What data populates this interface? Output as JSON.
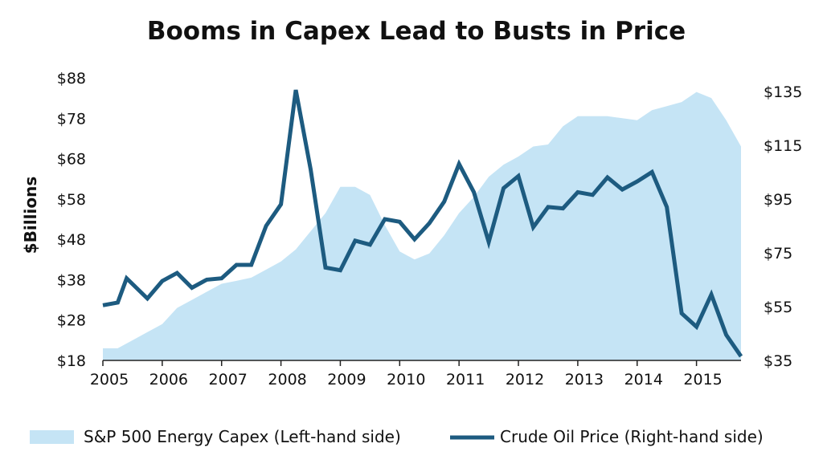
{
  "chart_data": {
    "type": "area+line",
    "title": "Booms in Capex Lead to Busts in Price",
    "ylabel": "$Billions",
    "x_range": [
      2005.0,
      2015.75
    ],
    "x_ticks": [
      2005,
      2006,
      2007,
      2008,
      2009,
      2010,
      2011,
      2012,
      2013,
      2014,
      2015
    ],
    "left_axis": {
      "range": [
        18,
        88
      ],
      "ticks": [
        18,
        28,
        38,
        48,
        58,
        68,
        78,
        88
      ],
      "tick_labels": [
        "$18",
        "$28",
        "$38",
        "$48",
        "$58",
        "$68",
        "$78",
        "$88"
      ]
    },
    "right_axis": {
      "range": [
        35,
        140
      ],
      "ticks": [
        35,
        55,
        75,
        95,
        115,
        135
      ],
      "tick_labels": [
        "$35",
        "$55",
        "$75",
        "$95",
        "$115",
        "$135"
      ]
    },
    "legend_placement": "bottom",
    "grid": false,
    "series": [
      {
        "name": "S&P 500 Energy Capex (Left-hand side)",
        "type": "area",
        "axis": "left",
        "color": "#c5e4f5",
        "x": [
          2005.0,
          2005.25,
          2005.5,
          2005.75,
          2006.0,
          2006.25,
          2006.5,
          2006.75,
          2007.0,
          2007.25,
          2007.5,
          2007.75,
          2008.0,
          2008.25,
          2008.5,
          2008.75,
          2009.0,
          2009.25,
          2009.5,
          2009.75,
          2010.0,
          2010.25,
          2010.5,
          2010.75,
          2011.0,
          2011.25,
          2011.5,
          2011.75,
          2012.0,
          2012.25,
          2012.5,
          2012.75,
          2013.0,
          2013.25,
          2013.5,
          2013.75,
          2014.0,
          2014.25,
          2014.5,
          2014.75,
          2015.0,
          2015.25,
          2015.5,
          2015.75
        ],
        "values": [
          21,
          21,
          23,
          25,
          27,
          31,
          33,
          35,
          37,
          37.7,
          38.5,
          40.5,
          42.5,
          45.5,
          50,
          54.5,
          61,
          61,
          59,
          51.5,
          45,
          43,
          44.5,
          49,
          54.5,
          58.5,
          63.5,
          66.5,
          68.5,
          71,
          71.5,
          76,
          78.5,
          78.5,
          78.5,
          78,
          77.5,
          80,
          81,
          82,
          84.5,
          83,
          77.5,
          71
        ]
      },
      {
        "name": "Crude Oil Price (Right-hand side)",
        "type": "line",
        "axis": "right",
        "color": "#1d5b80",
        "x": [
          2005.0,
          2005.25,
          2005.4,
          2005.75,
          2006.0,
          2006.25,
          2006.5,
          2006.75,
          2007.0,
          2007.25,
          2007.5,
          2007.75,
          2008.0,
          2008.25,
          2008.5,
          2008.75,
          2009.0,
          2009.25,
          2009.5,
          2009.75,
          2010.0,
          2010.25,
          2010.5,
          2010.75,
          2011.0,
          2011.25,
          2011.5,
          2011.75,
          2012.0,
          2012.25,
          2012.5,
          2012.75,
          2013.0,
          2013.25,
          2013.5,
          2013.75,
          2014.0,
          2014.25,
          2014.5,
          2014.75,
          2015.0,
          2015.25,
          2015.5,
          2015.75
        ],
        "values": [
          55.5,
          56.5,
          65.5,
          58,
          64.5,
          67.5,
          62,
          65,
          65.5,
          70.5,
          70.5,
          85,
          93,
          135.5,
          106,
          69.5,
          68.5,
          79.5,
          78,
          87.5,
          86.5,
          80,
          86,
          94,
          108,
          97.5,
          79,
          99,
          103.5,
          84.5,
          92,
          91.5,
          97.5,
          96.5,
          103,
          98.5,
          101.5,
          105,
          92,
          52.5,
          47.5,
          59.5,
          44.5,
          36.5
        ]
      }
    ]
  }
}
